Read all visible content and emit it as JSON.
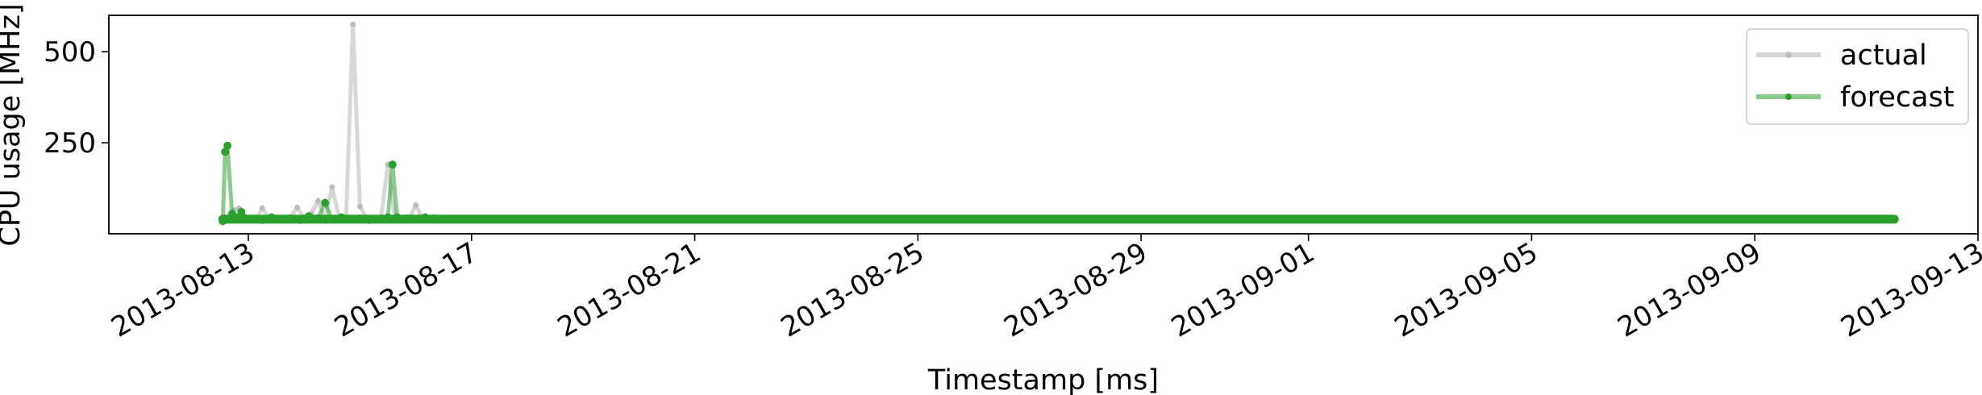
{
  "chart_data": {
    "type": "line",
    "title": "",
    "xlabel": "Timestamp [ms]",
    "ylabel": "CPU usage [MHz]",
    "xlim": [
      "2013-08-10T12:00:00",
      "2013-09-13T00:00:00"
    ],
    "ylim": [
      0,
      600
    ],
    "x_ticks": [
      "2013-08-13",
      "2013-08-17",
      "2013-08-21",
      "2013-08-25",
      "2013-08-29",
      "2013-09-01",
      "2013-09-05",
      "2013-09-09",
      "2013-09-13"
    ],
    "y_ticks": [
      250,
      500
    ],
    "grid": false,
    "legend_position": "top-right",
    "series": [
      {
        "name": "actual",
        "color": "#bdbdbd",
        "x": [
          "2013-08-12T13:00:00",
          "2013-08-12T16:00:00",
          "2013-08-12T18:00:00",
          "2013-08-12T20:00:00",
          "2013-08-12T22:00:00",
          "2013-08-13T00:00:00",
          "2013-08-13T03:00:00",
          "2013-08-13T06:00:00",
          "2013-08-13T09:00:00",
          "2013-08-13T12:00:00",
          "2013-08-13T15:00:00",
          "2013-08-13T18:00:00",
          "2013-08-13T21:00:00",
          "2013-08-14T00:00:00",
          "2013-08-14T03:00:00",
          "2013-08-14T06:00:00",
          "2013-08-14T09:00:00",
          "2013-08-14T12:00:00",
          "2013-08-14T15:00:00",
          "2013-08-14T18:00:00",
          "2013-08-14T21:00:00",
          "2013-08-15T00:00:00",
          "2013-08-15T03:00:00",
          "2013-08-15T06:00:00",
          "2013-08-15T09:00:00",
          "2013-08-15T12:00:00",
          "2013-08-15T15:00:00",
          "2013-08-15T18:00:00",
          "2013-08-15T21:00:00",
          "2013-08-16T00:00:00",
          "2013-08-16T03:00:00",
          "2013-08-16T06:00:00"
        ],
        "y": [
          35,
          45,
          65,
          70,
          50,
          40,
          38,
          70,
          42,
          40,
          38,
          45,
          72,
          42,
          55,
          90,
          40,
          128,
          45,
          40,
          575,
          75,
          42,
          38,
          40,
          190,
          42,
          38,
          40,
          78,
          42,
          38
        ]
      },
      {
        "name": "forecast",
        "color": "#2ca02c",
        "x": [
          "2013-08-12T13:00:00",
          "2013-08-12T14:00:00",
          "2013-08-12T15:00:00",
          "2013-08-12T17:00:00",
          "2013-08-12T19:00:00",
          "2013-08-12T21:00:00",
          "2013-08-12T23:00:00",
          "2013-08-13T02:00:00",
          "2013-08-13T06:00:00",
          "2013-08-13T10:00:00",
          "2013-08-13T14:00:00",
          "2013-08-13T18:00:00",
          "2013-08-13T22:00:00",
          "2013-08-14T02:00:00",
          "2013-08-14T06:00:00",
          "2013-08-14T09:00:00",
          "2013-08-14T12:00:00",
          "2013-08-14T16:00:00",
          "2013-08-14T20:00:00",
          "2013-08-15T00:00:00",
          "2013-08-15T04:00:00",
          "2013-08-15T08:00:00",
          "2013-08-15T12:00:00",
          "2013-08-15T14:00:00",
          "2013-08-15T16:00:00",
          "2013-08-15T20:00:00",
          "2013-08-16T00:00:00",
          "2013-08-16T04:00:00",
          "2013-08-16T08:00:00",
          "2013-08-16T12:00:00",
          "2013-08-17T00:00:00",
          "2013-08-21T00:00:00",
          "2013-08-25T00:00:00",
          "2013-08-29T00:00:00",
          "2013-09-01T00:00:00",
          "2013-09-05T00:00:00",
          "2013-09-09T00:00:00",
          "2013-09-11T12:00:00"
        ],
        "y": [
          35,
          225,
          242,
          55,
          45,
          60,
          42,
          40,
          38,
          45,
          40,
          42,
          38,
          48,
          42,
          85,
          40,
          45,
          40,
          42,
          38,
          40,
          45,
          190,
          45,
          42,
          40,
          45,
          42,
          40,
          40,
          40,
          40,
          40,
          40,
          40,
          40,
          40
        ]
      }
    ]
  }
}
